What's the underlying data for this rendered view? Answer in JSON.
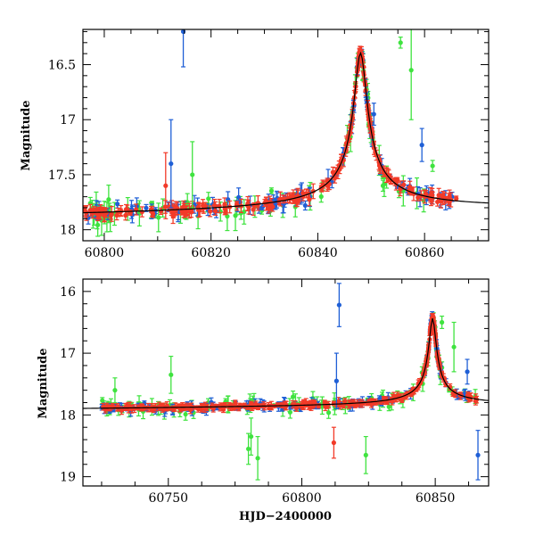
{
  "colors": {
    "blue": "#1f5fd6",
    "green": "#3fe33f",
    "red": "#f23a28",
    "model": "#000000"
  },
  "chart_data": [
    {
      "type": "scatter",
      "title": "",
      "xlabel": "",
      "ylabel": "Magnitude",
      "xlim": [
        60796,
        60872
      ],
      "ylim": [
        18.1,
        16.18
      ],
      "y_inverted": true,
      "grid": false,
      "legend": "none",
      "xticks": [
        60800,
        60820,
        60840,
        60860
      ],
      "yticks": [
        16.5,
        17,
        17.5,
        18
      ],
      "ytick_labels": [
        "16.5",
        "17",
        "17.5",
        "18"
      ],
      "peak": {
        "x": 60848,
        "y": 16.4,
        "width": 1.6
      },
      "baseline": 17.85,
      "model_line": [
        [
          60796,
          17.88
        ],
        [
          60820,
          17.82
        ],
        [
          60835,
          17.72
        ],
        [
          60842,
          17.45
        ],
        [
          60846,
          16.9
        ],
        [
          60848,
          16.4
        ],
        [
          60850,
          16.9
        ],
        [
          60853,
          17.4
        ],
        [
          60858,
          17.65
        ],
        [
          60865,
          17.78
        ],
        [
          60872,
          17.84
        ]
      ],
      "outliers": [
        {
          "series": "blue",
          "x": 60814.8,
          "y": 16.2,
          "err": 0.32
        },
        {
          "series": "blue",
          "x": 60812.5,
          "y": 17.4,
          "err": 0.4
        },
        {
          "series": "green",
          "x": 60857.5,
          "y": 16.55,
          "err": 0.45
        },
        {
          "series": "green",
          "x": 60855.5,
          "y": 16.3,
          "err": 0.05
        },
        {
          "series": "blue",
          "x": 60850.5,
          "y": 16.95,
          "err": 0.1
        },
        {
          "series": "blue",
          "x": 60859.5,
          "y": 17.23,
          "err": 0.15
        },
        {
          "series": "green",
          "x": 60861.5,
          "y": 17.42,
          "err": 0.05
        },
        {
          "series": "green",
          "x": 60852.2,
          "y": 17.6,
          "err": 0.05
        },
        {
          "series": "red",
          "x": 60811.5,
          "y": 17.6,
          "err": 0.3
        },
        {
          "series": "green",
          "x": 60816.5,
          "y": 17.5,
          "err": 0.3
        }
      ],
      "series": [
        {
          "name": "blue",
          "color": "#1f5fd6",
          "n_points": 110,
          "x_range": [
            60796,
            60866
          ],
          "scatter": 0.06
        },
        {
          "name": "green",
          "color": "#3fe33f",
          "n_points": 85,
          "x_range": [
            60796,
            60866
          ],
          "scatter": 0.1
        },
        {
          "name": "red",
          "color": "#f23a28",
          "n_points": 260,
          "x_range": [
            60796,
            60866
          ],
          "scatter": 0.04
        }
      ]
    },
    {
      "type": "scatter",
      "title": "",
      "xlabel": "HJD−2400000",
      "ylabel": "Magnitude",
      "xlim": [
        60718,
        60870
      ],
      "ylim": [
        19.15,
        15.8
      ],
      "y_inverted": true,
      "grid": false,
      "legend": "none",
      "xticks": [
        60750,
        60800,
        60850
      ],
      "yticks": [
        16,
        17,
        18,
        19
      ],
      "ytick_labels": [
        "16",
        "17",
        "18",
        "19"
      ],
      "peak": {
        "x": 60849,
        "y": 16.45,
        "width": 1.8
      },
      "baseline": 17.88,
      "model_line": [
        [
          60718,
          17.88
        ],
        [
          60800,
          17.86
        ],
        [
          60835,
          17.8
        ],
        [
          60843,
          17.5
        ],
        [
          60847,
          17.0
        ],
        [
          60849,
          16.45
        ],
        [
          60851,
          17.0
        ],
        [
          60855,
          17.55
        ],
        [
          60862,
          17.78
        ],
        [
          60870,
          17.85
        ]
      ],
      "outliers": [
        {
          "series": "blue",
          "x": 60814,
          "y": 16.22,
          "err": 0.35
        },
        {
          "series": "blue",
          "x": 60813,
          "y": 17.45,
          "err": 0.45
        },
        {
          "series": "green",
          "x": 60852.5,
          "y": 16.5,
          "err": 0.1
        },
        {
          "series": "green",
          "x": 60857,
          "y": 16.9,
          "err": 0.4
        },
        {
          "series": "green",
          "x": 60751,
          "y": 17.35,
          "err": 0.3
        },
        {
          "series": "green",
          "x": 60781,
          "y": 18.35,
          "err": 0.3
        },
        {
          "series": "green",
          "x": 60780,
          "y": 18.55,
          "err": 0.25
        },
        {
          "series": "green",
          "x": 60824,
          "y": 18.65,
          "err": 0.3
        },
        {
          "series": "green",
          "x": 60783.5,
          "y": 18.7,
          "err": 0.35
        },
        {
          "series": "red",
          "x": 60812,
          "y": 18.45,
          "err": 0.25
        },
        {
          "series": "blue",
          "x": 60866,
          "y": 18.65,
          "err": 0.4
        },
        {
          "series": "green",
          "x": 60730,
          "y": 17.6,
          "err": 0.2
        },
        {
          "series": "blue",
          "x": 60862,
          "y": 17.3,
          "err": 0.2
        }
      ],
      "series": [
        {
          "name": "blue",
          "color": "#1f5fd6",
          "n_points": 130,
          "x_range": [
            60724,
            60867
          ],
          "scatter": 0.06
        },
        {
          "name": "green",
          "color": "#3fe33f",
          "n_points": 110,
          "x_range": [
            60724,
            60867
          ],
          "scatter": 0.1
        },
        {
          "name": "red",
          "color": "#f23a28",
          "n_points": 320,
          "x_range": [
            60724,
            60867
          ],
          "scatter": 0.04
        }
      ]
    }
  ]
}
